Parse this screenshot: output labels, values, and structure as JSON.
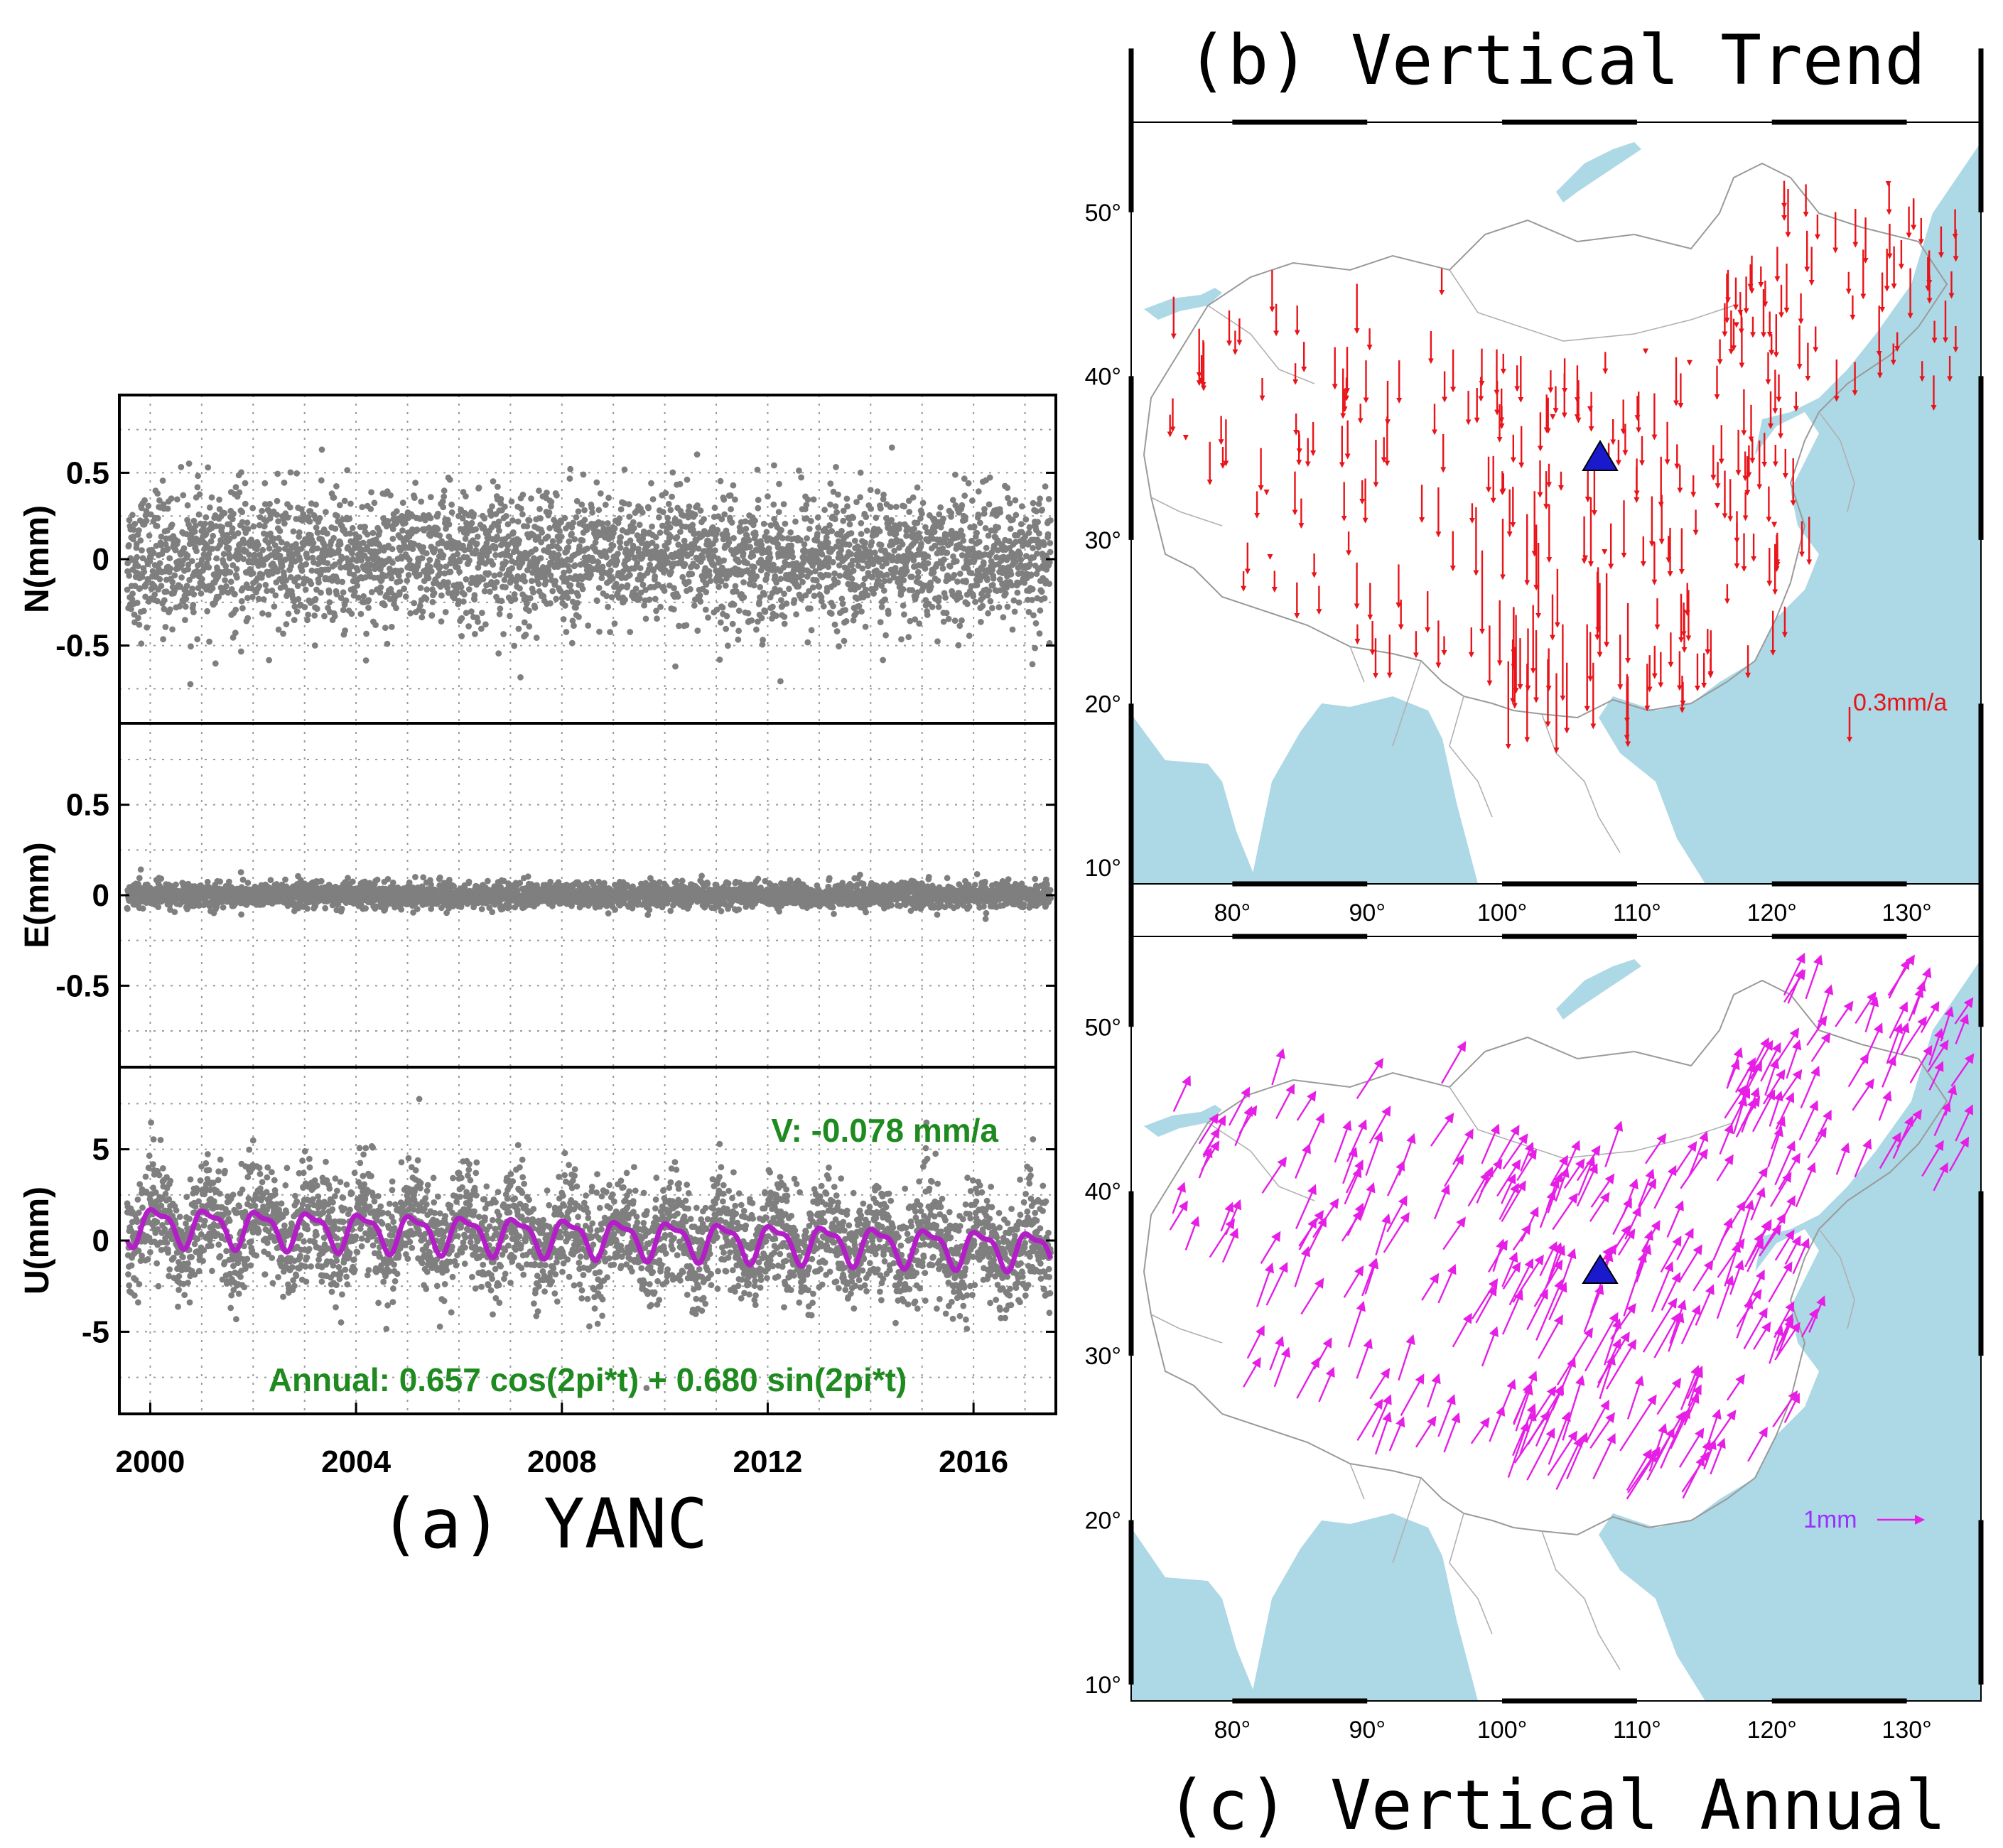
{
  "chart_data": [
    {
      "id": "a",
      "type": "scatter",
      "caption": "(a)  YANC",
      "x_ticks": [
        "2000",
        "2004",
        "2008",
        "2012",
        "2016"
      ],
      "x_tick_values": [
        2000,
        2004,
        2008,
        2012,
        2016
      ],
      "xlim": [
        1999.4,
        2017.6
      ],
      "grid": true,
      "panels": [
        {
          "id": "N",
          "ylabel": "N(mm)",
          "ylim": [
            -0.95,
            0.95
          ],
          "y_ticks": [
            "0.5",
            "0",
            "-0.5"
          ],
          "y_tick_values": [
            0.5,
            0,
            -0.5
          ],
          "scatter_spread": 0.19,
          "dot_color": "#7f7f7f"
        },
        {
          "id": "E",
          "ylabel": "E(mm)",
          "ylim": [
            -0.95,
            0.95
          ],
          "y_ticks": [
            "0.5",
            "0",
            "-0.5"
          ],
          "y_tick_values": [
            0.5,
            0,
            -0.5
          ],
          "scatter_spread": 0.035,
          "dot_color": "#7f7f7f"
        },
        {
          "id": "U",
          "ylabel": "U(mm)",
          "ylim": [
            -9.5,
            9.5
          ],
          "y_ticks": [
            "5",
            "0",
            "-5"
          ],
          "y_tick_values": [
            5,
            0,
            -5
          ],
          "scatter_spread": 1.5,
          "dot_color": "#7f7f7f",
          "fit_color": "#b41ec8",
          "trend_mm_per_year": -0.078,
          "annual_cos": 0.657,
          "annual_sin": 0.68,
          "velocity_text": "V: -0.078 mm/a",
          "annual_text": "Annual:  0.657 cos(2pi*t) + 0.680 sin(2pi*t)"
        }
      ]
    },
    {
      "id": "b",
      "type": "map",
      "caption": "(b)  Vertical Trend",
      "lon_ticks": [
        "80°",
        "90°",
        "100°",
        "110°",
        "120°",
        "130°"
      ],
      "lon_tick_values": [
        80,
        90,
        100,
        110,
        120,
        130
      ],
      "lat_ticks": [
        "50°",
        "40°",
        "30°",
        "20°",
        "10°"
      ],
      "lat_tick_values": [
        50,
        40,
        30,
        20,
        10
      ],
      "lon_range": [
        72.5,
        135.5
      ],
      "lat_range": [
        9,
        55.5
      ],
      "arrow_color": "#e8141a",
      "vectors": "downward arrows at GNSS stations across China, longest in the southwest",
      "scale_label": "0.3mm/a",
      "station_marker": {
        "name": "YANC",
        "lon": 107.3,
        "lat": 37.8,
        "color": "#1a1acc"
      }
    },
    {
      "id": "c",
      "type": "map",
      "caption": "(c)  Vertical Annual",
      "lon_ticks": [
        "80°",
        "90°",
        "100°",
        "110°",
        "120°",
        "130°"
      ],
      "lon_tick_values": [
        80,
        90,
        100,
        110,
        120,
        130
      ],
      "lat_ticks": [
        "50°",
        "40°",
        "30°",
        "20°",
        "10°"
      ],
      "lat_tick_values": [
        50,
        40,
        30,
        20,
        10
      ],
      "lon_range": [
        72.5,
        135.5
      ],
      "lat_range": [
        9,
        55.5
      ],
      "arrow_color": "#e61ee6",
      "vectors": "phasor arrows pointing north-east at GNSS stations across China",
      "scale_label": "1mm",
      "station_marker": {
        "name": "YANC",
        "lon": 107.3,
        "lat": 37.8,
        "color": "#1a1acc"
      }
    }
  ],
  "colors": {
    "land": "#ffffff",
    "water": "#add8e6",
    "border": "#9a9a9a"
  }
}
